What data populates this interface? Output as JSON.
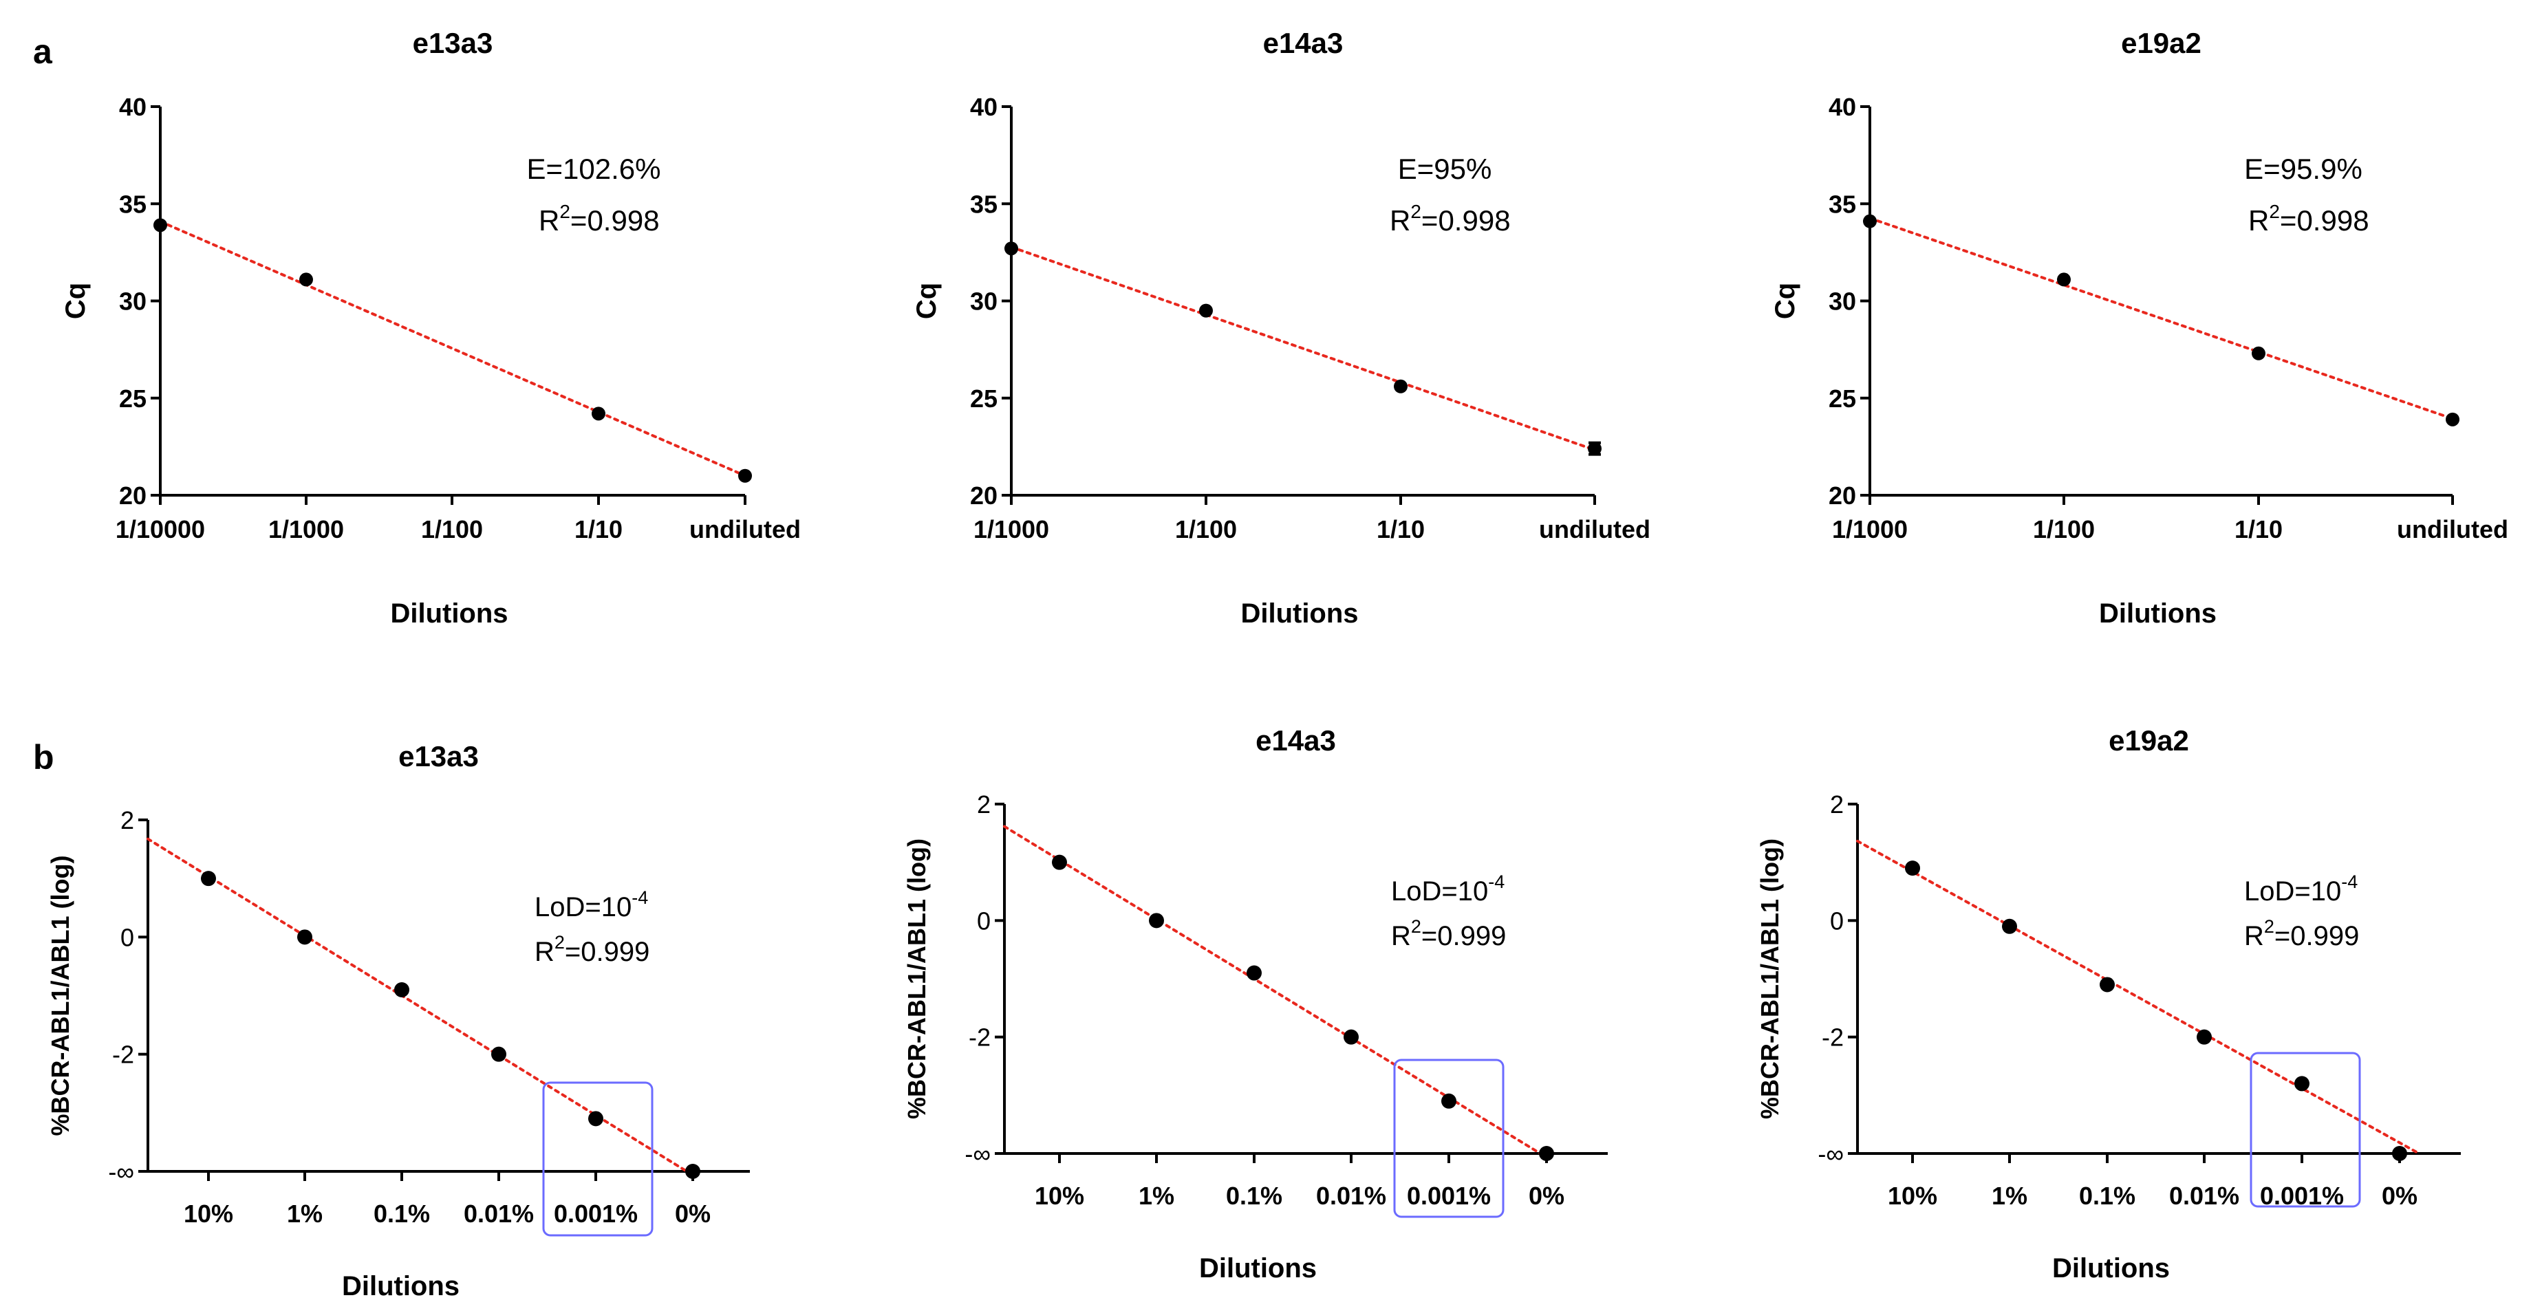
{
  "panels": [
    {
      "label": "a"
    },
    {
      "label": "b"
    }
  ],
  "chart_data": [
    {
      "type": "scatter",
      "panel": "a",
      "title": "e13a3",
      "xlabel": "Dilutions",
      "ylabel": "Cq",
      "categories": [
        "1/10000",
        "1/1000",
        "1/100",
        "1/10",
        "undiluted"
      ],
      "x_scale": "log10 dilution",
      "ylim": [
        20,
        40
      ],
      "yticks": [
        "20",
        "25",
        "30",
        "35",
        "40"
      ],
      "series": [
        {
          "values": [
            33.9,
            31.1,
            null,
            24.2,
            21.0
          ],
          "fit": "linear"
        }
      ],
      "annotations": [
        "E=102.6%",
        "R",
        "2",
        "=0.998"
      ],
      "fit_color": "#e8281e"
    },
    {
      "type": "scatter",
      "panel": "a",
      "title": "e14a3",
      "xlabel": "Dilutions",
      "ylabel": "Cq",
      "categories": [
        "1/1000",
        "1/100",
        "1/10",
        "undiluted"
      ],
      "x_scale": "log10 dilution",
      "ylim": [
        20,
        40
      ],
      "yticks": [
        "20",
        "25",
        "30",
        "35",
        "40"
      ],
      "series": [
        {
          "values": [
            32.7,
            29.5,
            25.6,
            22.4
          ],
          "fit": "linear",
          "error": [
            0,
            0,
            0,
            0.3
          ]
        }
      ],
      "annotations": [
        "E=95%",
        "R",
        "2",
        "=0.998"
      ],
      "fit_color": "#e8281e"
    },
    {
      "type": "scatter",
      "panel": "a",
      "title": "e19a2",
      "xlabel": "Dilutions",
      "ylabel": "Cq",
      "categories": [
        "1/1000",
        "1/100",
        "1/10",
        "undiluted"
      ],
      "x_scale": "log10 dilution",
      "ylim": [
        20,
        40
      ],
      "yticks": [
        "20",
        "25",
        "30",
        "35",
        "40"
      ],
      "series": [
        {
          "values": [
            34.1,
            31.1,
            27.3,
            23.9
          ],
          "fit": "linear"
        }
      ],
      "annotations": [
        "E=95.9%",
        "R",
        "2",
        "=0.998"
      ],
      "fit_color": "#e8281e"
    },
    {
      "type": "scatter",
      "panel": "b",
      "title": "e13a3",
      "xlabel": "Dilutions",
      "ylabel": "%BCR-ABL1/ABL1 (log)",
      "categories": [
        "10%",
        "1%",
        "0.1%",
        "0.01%",
        "0.001%",
        "0%"
      ],
      "ylim": [
        "-∞",
        2
      ],
      "yticks": [
        "-∞",
        "-2",
        "0",
        "2"
      ],
      "series": [
        {
          "values": [
            1.0,
            0.0,
            -0.9,
            -2.0,
            -3.1,
            "-∞"
          ],
          "fit": "linear"
        }
      ],
      "highlight_category": "0.001%",
      "highlight_color": "#6b6bff",
      "annotations": [
        "LoD=10",
        "-4",
        "R",
        "2",
        "=0.999"
      ],
      "fit_color": "#e8281e"
    },
    {
      "type": "scatter",
      "panel": "b",
      "title": "e14a3",
      "xlabel": "Dilutions",
      "ylabel": "%BCR-ABL1/ABL1 (log)",
      "categories": [
        "10%",
        "1%",
        "0.1%",
        "0.01%",
        "0.001%",
        "0%"
      ],
      "ylim": [
        "-∞",
        2
      ],
      "yticks": [
        "-∞",
        "-2",
        "0",
        "2"
      ],
      "series": [
        {
          "values": [
            1.0,
            0.0,
            -0.9,
            -2.0,
            -3.1,
            "-∞"
          ],
          "fit": "linear"
        }
      ],
      "highlight_category": "0.001%",
      "highlight_color": "#6b6bff",
      "annotations": [
        "LoD=10",
        "-4",
        "R",
        "2",
        "=0.999"
      ],
      "fit_color": "#e8281e"
    },
    {
      "type": "scatter",
      "panel": "b",
      "title": "e19a2",
      "xlabel": "Dilutions",
      "ylabel": "%BCR-ABL1/ABL1 (log)",
      "categories": [
        "10%",
        "1%",
        "0.1%",
        "0.01%",
        "0.001%",
        "0%"
      ],
      "ylim": [
        "-∞",
        2
      ],
      "yticks": [
        "-∞",
        "-2",
        "0",
        "2"
      ],
      "series": [
        {
          "values": [
            0.9,
            -0.1,
            -1.1,
            -2.0,
            -2.8,
            "-∞"
          ],
          "fit": "linear"
        }
      ],
      "highlight_category": "0.001%",
      "highlight_color": "#6b6bff",
      "annotations": [
        "LoD=10",
        "-4",
        "R",
        "2",
        "=0.999"
      ],
      "fit_color": "#e8281e"
    }
  ]
}
